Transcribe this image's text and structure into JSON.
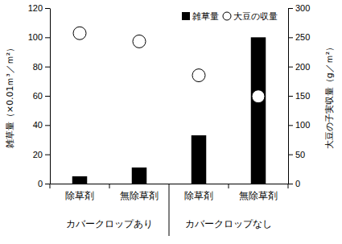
{
  "chart_data": {
    "type": "bar",
    "categories": [
      "除草剤",
      "無除草剤",
      "除草剤",
      "無除草剤"
    ],
    "x_group_labels": [
      "カバークロップあり",
      "カバークロップなし"
    ],
    "y_label": "雑草量（×0.01ｍ³／ｍ²）",
    "y2_label": "大豆の子実収量（g／ｍ²）",
    "series": [
      {
        "name": "雑草量",
        "type": "bar",
        "color": "#000000",
        "values": [
          5,
          11,
          33,
          100
        ]
      },
      {
        "name": "大豆の収量",
        "type": "scatter",
        "marker": "circle",
        "color": "#ffffff",
        "axis": "y2",
        "values": [
          257,
          243,
          185,
          149
        ]
      }
    ],
    "ylim": [
      0,
      120
    ],
    "yticks": [
      0,
      20,
      40,
      60,
      80,
      100,
      120
    ],
    "y2lim": [
      0,
      300
    ],
    "y2ticks": [
      0,
      50,
      100,
      150,
      200,
      250,
      300
    ],
    "grid": false,
    "legend": "top-right"
  }
}
